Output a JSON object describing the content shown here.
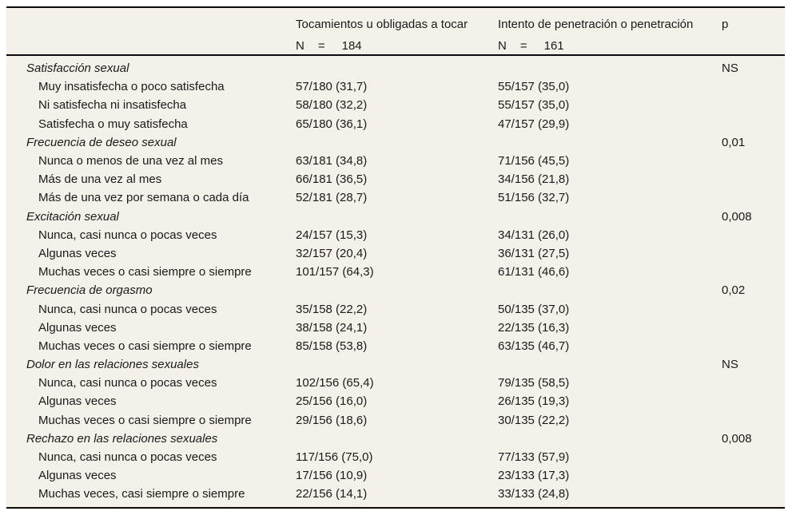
{
  "table": {
    "colors": {
      "table_background": "#f4f1ea",
      "rule": "#0a0a0a",
      "text": "#1a1a1a",
      "page_background": "#ffffff"
    },
    "columns": {
      "group1": "Tocamientos u obligadas a tocar",
      "group2": "Intento de penetración o penetración",
      "p": "p"
    },
    "n_row": {
      "group1": {
        "label": "N",
        "eq": "=",
        "value": "184"
      },
      "group2": {
        "label": "N",
        "eq": "=",
        "value": "161"
      }
    },
    "sections": [
      {
        "title": "Satisfacción sexual",
        "p": "NS",
        "rows": [
          {
            "label": "Muy insatisfecha o poco satisfecha",
            "group1": "57/180 (31,7)",
            "group2": "55/157 (35,0)"
          },
          {
            "label": "Ni satisfecha ni insatisfecha",
            "group1": "58/180 (32,2)",
            "group2": "55/157 (35,0)"
          },
          {
            "label": "Satisfecha o muy satisfecha",
            "group1": "65/180 (36,1)",
            "group2": "47/157 (29,9)"
          }
        ]
      },
      {
        "title": "Frecuencia de deseo sexual",
        "p": "0,01",
        "rows": [
          {
            "label": "Nunca o menos de una vez al mes",
            "group1": "63/181 (34,8)",
            "group2": "71/156 (45,5)"
          },
          {
            "label": "Más de una vez al mes",
            "group1": "66/181 (36,5)",
            "group2": "34/156 (21,8)"
          },
          {
            "label": "Más de una vez por semana o cada día",
            "group1": "52/181 (28,7)",
            "group2": "51/156 (32,7)"
          }
        ]
      },
      {
        "title": "Excitación sexual",
        "p": "0,008",
        "rows": [
          {
            "label": "Nunca, casi nunca o pocas veces",
            "group1": "24/157 (15,3)",
            "group2": "34/131 (26,0)"
          },
          {
            "label": "Algunas veces",
            "group1": "32/157 (20,4)",
            "group2": "36/131 (27,5)"
          },
          {
            "label": "Muchas veces o casi siempre o siempre",
            "group1": "101/157 (64,3)",
            "group2": "61/131 (46,6)"
          }
        ]
      },
      {
        "title": "Frecuencia de orgasmo",
        "p": "0,02",
        "rows": [
          {
            "label": "Nunca, casi nunca o pocas veces",
            "group1": "35/158 (22,2)",
            "group2": "50/135 (37,0)"
          },
          {
            "label": "Algunas veces",
            "group1": "38/158 (24,1)",
            "group2": "22/135 (16,3)"
          },
          {
            "label": "Muchas veces o casi siempre o siempre",
            "group1": "85/158 (53,8)",
            "group2": "63/135 (46,7)"
          }
        ]
      },
      {
        "title": "Dolor en las relaciones sexuales",
        "p": "NS",
        "rows": [
          {
            "label": "Nunca, casi nunca o pocas veces",
            "group1": "102/156 (65,4)",
            "group2": "79/135 (58,5)"
          },
          {
            "label": "Algunas veces",
            "group1": "25/156 (16,0)",
            "group2": "26/135 (19,3)"
          },
          {
            "label": "Muchas veces o casi siempre o siempre",
            "group1": "29/156 (18,6)",
            "group2": "30/135 (22,2)"
          }
        ]
      },
      {
        "title": "Rechazo en las relaciones sexuales",
        "p": "0,008",
        "rows": [
          {
            "label": "Nunca, casi nunca o pocas veces",
            "group1": "117/156 (75,0)",
            "group2": "77/133 (57,9)"
          },
          {
            "label": "Algunas veces",
            "group1": "17/156 (10,9)",
            "group2": "23/133 (17,3)"
          },
          {
            "label": "Muchas veces, casi siempre o siempre",
            "group1": "22/156 (14,1)",
            "group2": "33/133 (24,8)"
          }
        ]
      }
    ]
  }
}
